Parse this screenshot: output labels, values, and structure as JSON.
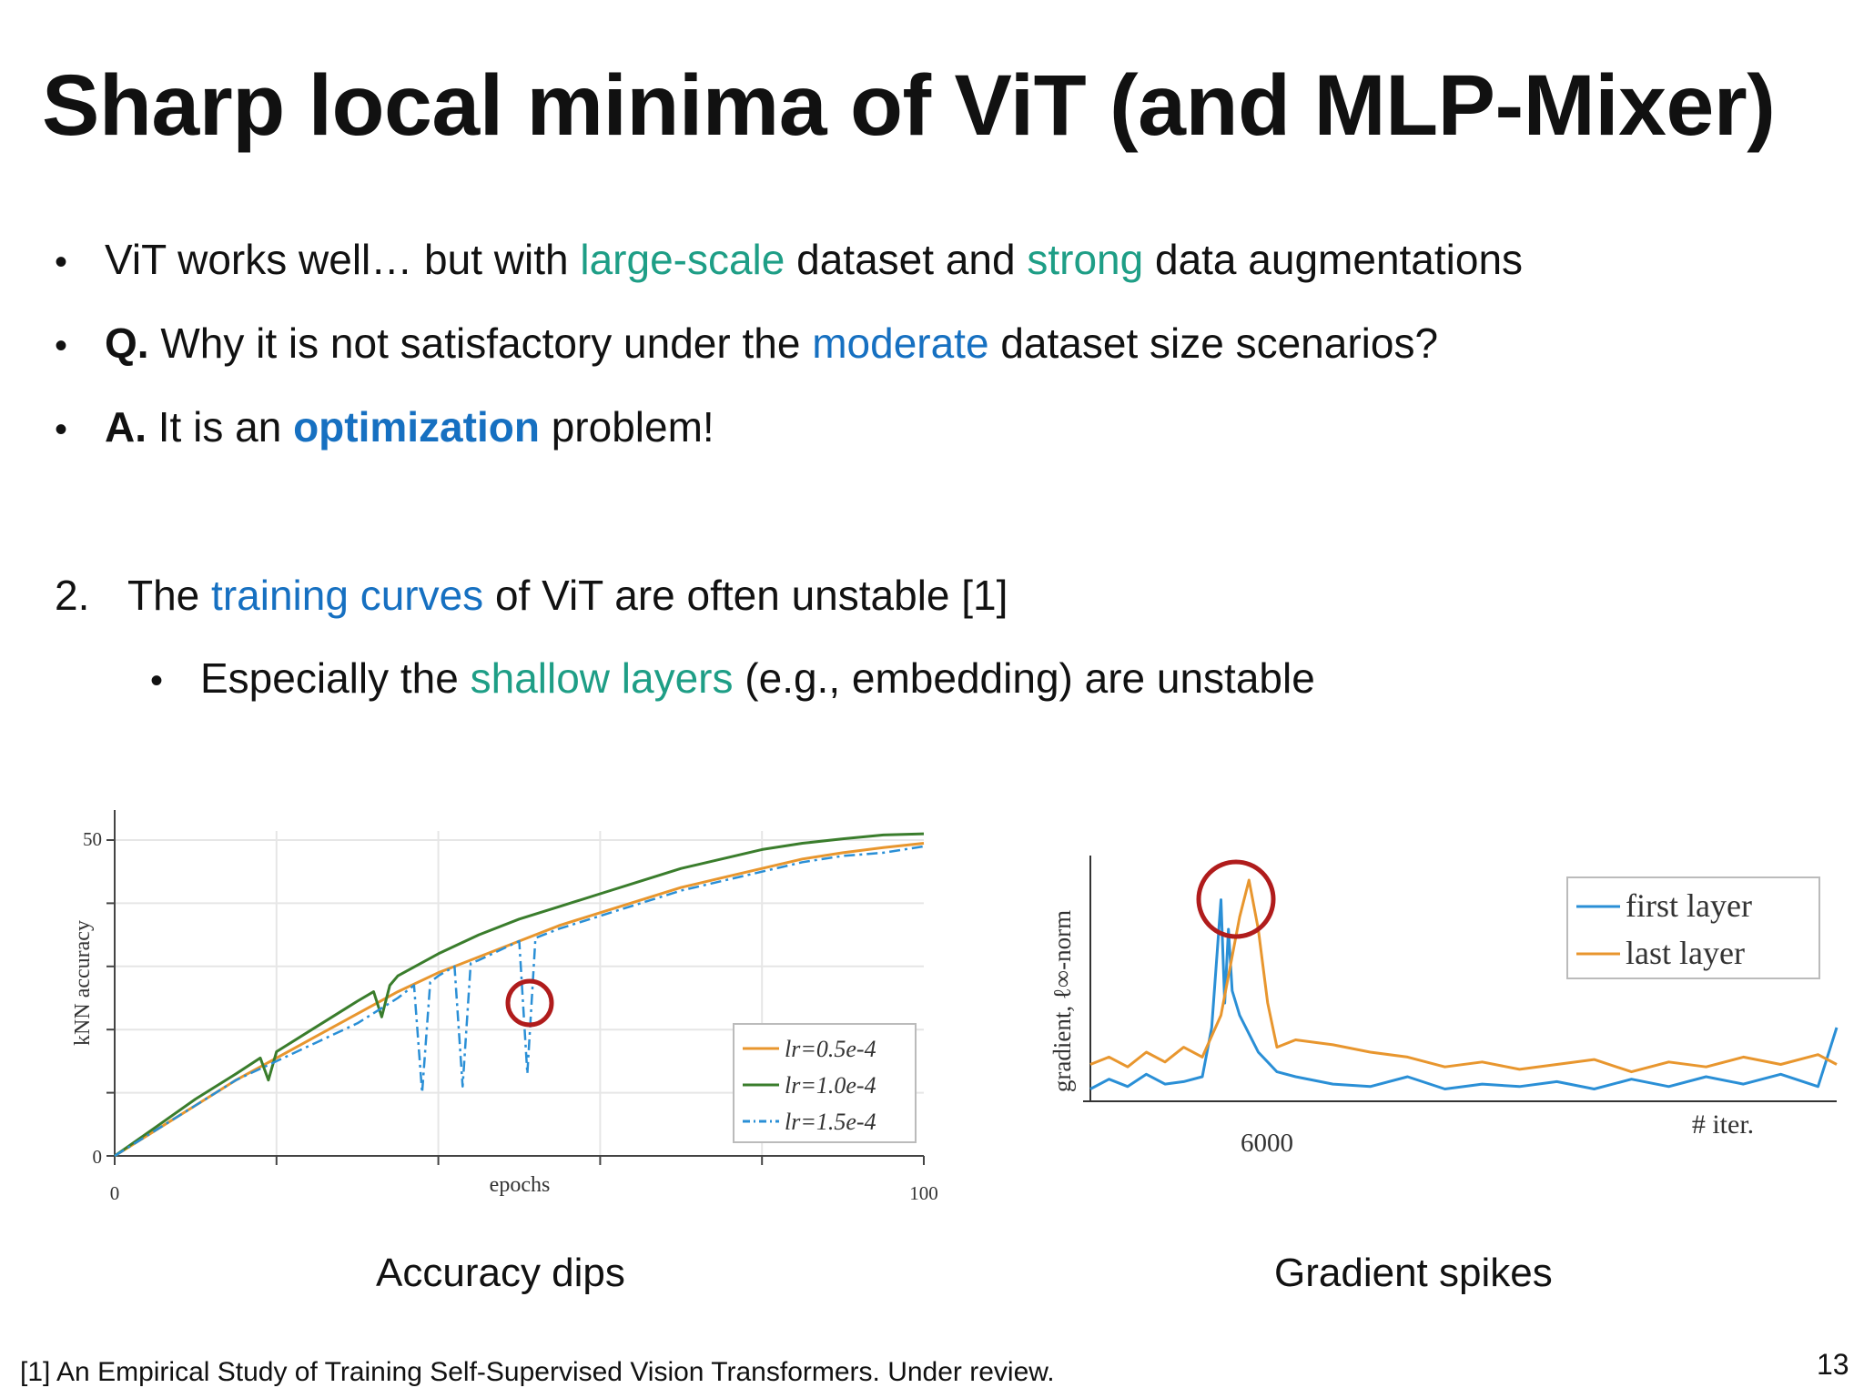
{
  "slide": {
    "title": "Sharp local minima of ViT (and MLP-Mixer)",
    "page_number": "13",
    "footnote": "[1] An Empirical Study of Training Self-Supervised Vision Transformers. Under review."
  },
  "bullets": [
    {
      "marker": "•",
      "parts": [
        "ViT works well… but with ",
        "large-scale",
        " dataset and ",
        "strong",
        " data augmentations"
      ]
    },
    {
      "marker": "•",
      "parts": [
        "Q.",
        " Why it is not satisfactory under the ",
        "moderate",
        " dataset size scenarios?"
      ]
    },
    {
      "marker": "•",
      "parts": [
        "A.",
        " It is an ",
        "optimization",
        " problem!"
      ]
    }
  ],
  "numbered": {
    "marker": "2.",
    "parts": [
      "The ",
      "training curves",
      " of ViT are often unstable [1]"
    ]
  },
  "sub_bullet": {
    "marker": "•",
    "parts": [
      "Especially the ",
      "shallow layers",
      " (e.g., embedding) are unstable"
    ]
  },
  "colors": {
    "teal": "#1e9e86",
    "blue": "#1670c1",
    "orange": "#e8962e",
    "green": "#3a7d2c",
    "dash_blue": "#2a8fd6",
    "circle": "#b01c1c"
  },
  "chart_data": [
    {
      "type": "line",
      "caption": "Accuracy dips",
      "xlabel": "epochs",
      "ylabel": "kNN accuracy",
      "xlim": [
        0,
        100
      ],
      "ylim": [
        0,
        50
      ],
      "x_ticks": [
        "0",
        "100"
      ],
      "y_ticks": [
        "0",
        "50"
      ],
      "legend_position": "bottom-right",
      "series": [
        {
          "name": "lr=0.5e-4",
          "color": "#e8962e",
          "style": "solid",
          "x": [
            0,
            5,
            10,
            15,
            20,
            25,
            30,
            35,
            40,
            45,
            50,
            55,
            60,
            65,
            70,
            75,
            80,
            85,
            90,
            95,
            100
          ],
          "y": [
            0,
            4,
            8,
            12,
            15.5,
            19,
            22.5,
            26,
            29,
            31.5,
            34,
            36.5,
            38.5,
            40.5,
            42.5,
            44,
            45.5,
            47,
            48,
            48.8,
            49.5
          ]
        },
        {
          "name": "lr=1.0e-4",
          "color": "#3a7d2c",
          "style": "solid",
          "x": [
            0,
            5,
            10,
            15,
            18,
            19,
            20,
            25,
            30,
            32,
            33,
            34,
            35,
            40,
            45,
            50,
            55,
            60,
            65,
            70,
            75,
            80,
            85,
            90,
            95,
            100
          ],
          "y": [
            0,
            4.5,
            9,
            13,
            15.5,
            12,
            16.5,
            20.5,
            24.5,
            26,
            22,
            27,
            28.5,
            32,
            35,
            37.5,
            39.5,
            41.5,
            43.5,
            45.5,
            47,
            48.5,
            49.5,
            50.2,
            50.8,
            51
          ]
        },
        {
          "name": "lr=1.5e-4",
          "color": "#2a8fd6",
          "style": "dashdot",
          "x": [
            0,
            5,
            10,
            15,
            20,
            25,
            30,
            35,
            37,
            38,
            39,
            40,
            42,
            43,
            44,
            45,
            50,
            51,
            52,
            53,
            55,
            60,
            65,
            70,
            75,
            80,
            85,
            90,
            95,
            100
          ],
          "y": [
            0,
            4,
            8,
            12,
            15,
            18,
            21,
            25,
            27,
            10,
            27.5,
            28.5,
            30,
            11,
            30.5,
            31,
            34,
            13,
            34.5,
            35,
            36,
            38,
            40,
            42,
            43.5,
            45,
            46.5,
            47.5,
            48,
            49
          ]
        }
      ]
    },
    {
      "type": "line",
      "caption": "Gradient spikes",
      "xlabel": "# iter.",
      "ylabel": "gradient, ℓ∞-norm",
      "x_ticks": [
        "6000"
      ],
      "xlim": [
        5000,
        9000
      ],
      "ylim": [
        0,
        1
      ],
      "legend_position": "top-right",
      "series": [
        {
          "name": "first layer",
          "color": "#2a8fd6",
          "x": [
            5000,
            5100,
            5200,
            5300,
            5400,
            5500,
            5600,
            5650,
            5700,
            5720,
            5740,
            5760,
            5800,
            5900,
            6000,
            6100,
            6300,
            6500,
            6700,
            6900,
            7100,
            7300,
            7500,
            7700,
            7900,
            8100,
            8300,
            8500,
            8700,
            8900,
            9000
          ],
          "y": [
            0.05,
            0.09,
            0.06,
            0.11,
            0.07,
            0.08,
            0.1,
            0.3,
            0.82,
            0.4,
            0.7,
            0.45,
            0.35,
            0.2,
            0.12,
            0.1,
            0.07,
            0.06,
            0.1,
            0.05,
            0.07,
            0.06,
            0.08,
            0.05,
            0.09,
            0.06,
            0.1,
            0.07,
            0.11,
            0.06,
            0.3
          ]
        },
        {
          "name": "last layer",
          "color": "#e8962e",
          "x": [
            5000,
            5100,
            5200,
            5300,
            5400,
            5500,
            5600,
            5700,
            5800,
            5850,
            5900,
            5950,
            6000,
            6100,
            6300,
            6500,
            6700,
            6900,
            7100,
            7300,
            7500,
            7700,
            7900,
            8100,
            8300,
            8500,
            8700,
            8900,
            9000
          ],
          "y": [
            0.15,
            0.18,
            0.14,
            0.2,
            0.16,
            0.22,
            0.18,
            0.35,
            0.75,
            0.9,
            0.7,
            0.4,
            0.22,
            0.25,
            0.23,
            0.2,
            0.18,
            0.14,
            0.16,
            0.13,
            0.15,
            0.17,
            0.12,
            0.16,
            0.14,
            0.18,
            0.15,
            0.19,
            0.15
          ]
        }
      ]
    }
  ]
}
